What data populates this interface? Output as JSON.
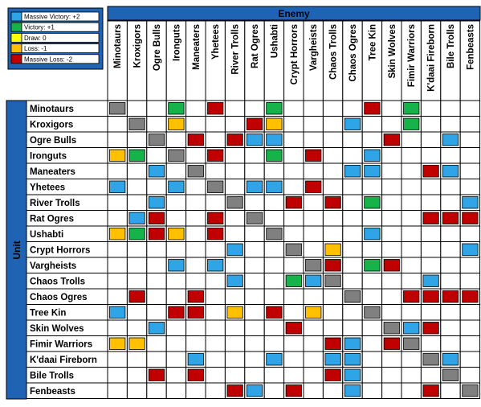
{
  "chart_data": {
    "type": "heatmap",
    "title": "",
    "column_axis_label": "Enemy",
    "row_axis_label": "Unit",
    "units": [
      "Minotaurs",
      "Kroxigors",
      "Ogre Bulls",
      "Ironguts",
      "Maneaters",
      "Yhetees",
      "River Trolls",
      "Rat Ogres",
      "Ushabti",
      "Crypt Horrors",
      "Vargheists",
      "Chaos Trolls",
      "Chaos Ogres",
      "Tree Kin",
      "Skin Wolves",
      "Fimir Warriors",
      "K'daai Fireborn",
      "Bile Trolls",
      "Fenbeasts"
    ],
    "enemies": [
      "Minotaurs",
      "Kroxigors",
      "Ogre Bulls",
      "Ironguts",
      "Maneaters",
      "Yhetees",
      "River Trolls",
      "Rat Ogres",
      "Ushabti",
      "Crypt Horrors",
      "Vargheists",
      "Chaos Trolls",
      "Chaos Ogres",
      "Tree Kin",
      "Skin Wolves",
      "Fimir Warriors",
      "K'daai Fireborn",
      "Bile Trolls",
      "Fenbeasts"
    ],
    "legend": [
      {
        "label": "Massive Victory: +2",
        "value": 2,
        "color": "#2FA5E8"
      },
      {
        "label": "Victory: +1",
        "value": 1,
        "color": "#15B34A"
      },
      {
        "label": "Draw: 0",
        "value": 0,
        "color": "#FFFF00"
      },
      {
        "label": "Loss: -1",
        "value": -1,
        "color": "#FFC000"
      },
      {
        "label": "Massive Loss: -2",
        "value": -2,
        "color": "#C00000"
      }
    ],
    "self_match_color": "#808080",
    "values": [
      [
        null,
        0,
        0,
        1,
        0,
        -2,
        0,
        0,
        1,
        0,
        0,
        0,
        0,
        -2,
        0,
        1,
        0,
        0,
        0
      ],
      [
        0,
        null,
        0,
        -1,
        0,
        0,
        0,
        -2,
        -1,
        0,
        0,
        0,
        2,
        0,
        0,
        1,
        0,
        0,
        0
      ],
      [
        0,
        0,
        null,
        0,
        -2,
        0,
        -2,
        2,
        2,
        0,
        0,
        0,
        0,
        0,
        -2,
        0,
        0,
        2,
        0
      ],
      [
        -1,
        1,
        0,
        null,
        0,
        -2,
        0,
        0,
        1,
        0,
        -2,
        0,
        0,
        2,
        0,
        0,
        0,
        0,
        0
      ],
      [
        0,
        0,
        2,
        0,
        null,
        0,
        0,
        0,
        0,
        0,
        0,
        0,
        2,
        2,
        0,
        0,
        -2,
        2,
        0
      ],
      [
        2,
        0,
        0,
        2,
        0,
        null,
        0,
        2,
        2,
        0,
        -2,
        0,
        0,
        0,
        0,
        0,
        0,
        0,
        0
      ],
      [
        0,
        0,
        2,
        0,
        0,
        0,
        null,
        0,
        0,
        -2,
        0,
        -2,
        0,
        1,
        0,
        0,
        0,
        0,
        2
      ],
      [
        0,
        2,
        -2,
        0,
        0,
        -2,
        0,
        null,
        0,
        0,
        0,
        0,
        0,
        0,
        0,
        0,
        -2,
        -2,
        -2
      ],
      [
        -1,
        1,
        -2,
        -1,
        0,
        -2,
        0,
        0,
        null,
        0,
        0,
        0,
        0,
        2,
        0,
        0,
        0,
        0,
        0
      ],
      [
        0,
        0,
        0,
        0,
        0,
        0,
        2,
        0,
        0,
        null,
        0,
        -1,
        0,
        0,
        0,
        0,
        0,
        0,
        2
      ],
      [
        0,
        0,
        0,
        2,
        0,
        2,
        0,
        0,
        0,
        0,
        null,
        -2,
        0,
        1,
        -2,
        0,
        0,
        0,
        0
      ],
      [
        0,
        0,
        0,
        0,
        0,
        0,
        2,
        0,
        0,
        1,
        2,
        null,
        0,
        0,
        0,
        0,
        2,
        0,
        0
      ],
      [
        0,
        -2,
        0,
        0,
        -2,
        0,
        0,
        0,
        0,
        0,
        0,
        0,
        null,
        0,
        0,
        -2,
        -2,
        -2,
        -2
      ],
      [
        2,
        0,
        0,
        -2,
        -2,
        0,
        -1,
        0,
        -2,
        0,
        -1,
        0,
        0,
        null,
        0,
        0,
        0,
        0,
        0
      ],
      [
        0,
        0,
        2,
        0,
        0,
        0,
        0,
        0,
        0,
        -2,
        0,
        0,
        0,
        0,
        null,
        2,
        -2,
        0,
        0
      ],
      [
        -1,
        -1,
        0,
        0,
        0,
        0,
        0,
        0,
        0,
        0,
        0,
        -2,
        2,
        0,
        -2,
        null,
        0,
        0,
        0
      ],
      [
        0,
        0,
        0,
        0,
        2,
        0,
        0,
        0,
        2,
        0,
        0,
        2,
        2,
        0,
        0,
        0,
        null,
        2,
        0
      ],
      [
        0,
        0,
        -2,
        0,
        -2,
        0,
        0,
        0,
        0,
        0,
        0,
        -2,
        2,
        0,
        0,
        0,
        0,
        null,
        0
      ],
      [
        0,
        0,
        0,
        0,
        0,
        0,
        -2,
        2,
        0,
        -2,
        0,
        0,
        2,
        0,
        0,
        0,
        -2,
        0,
        null
      ]
    ]
  }
}
